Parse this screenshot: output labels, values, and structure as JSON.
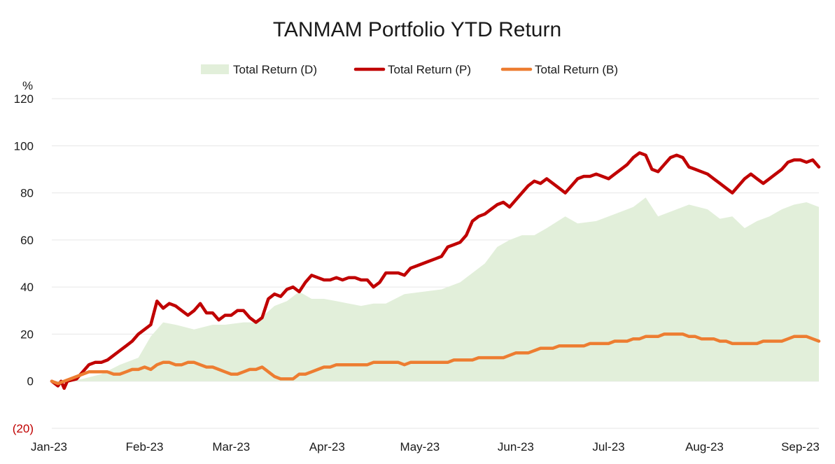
{
  "chart_data": {
    "type": "line",
    "title": "TANMAM Portfolio YTD Return",
    "ylabel": "%",
    "ylim": [
      -20,
      120
    ],
    "y_ticks": [
      120,
      100,
      80,
      60,
      40,
      20,
      0,
      -20
    ],
    "y_tick_labels": [
      "120",
      "100",
      "80",
      "60",
      "40",
      "20",
      "0",
      "(20)"
    ],
    "x_ticks": [
      {
        "x": 0,
        "label": "Jan-23"
      },
      {
        "x": 30,
        "label": "Feb-23"
      },
      {
        "x": 58,
        "label": "Mar-23"
      },
      {
        "x": 89,
        "label": "Apr-23"
      },
      {
        "x": 119,
        "label": "May-23"
      },
      {
        "x": 150,
        "label": "Jun-23"
      },
      {
        "x": 180,
        "label": "Jul-23"
      },
      {
        "x": 211,
        "label": "Aug-23"
      },
      {
        "x": 242,
        "label": "Sep-23"
      }
    ],
    "xlim": [
      0,
      248
    ],
    "legend_position": "top-center",
    "series": [
      {
        "name": "Total Return (D)",
        "style": "area",
        "color": "#e2efda",
        "x": [
          0,
          4,
          10,
          16,
          22,
          28,
          32,
          36,
          40,
          46,
          52,
          56,
          62,
          66,
          72,
          76,
          80,
          84,
          88,
          92,
          96,
          100,
          104,
          108,
          114,
          120,
          126,
          132,
          136,
          140,
          144,
          148,
          152,
          156,
          160,
          166,
          170,
          176,
          180,
          184,
          188,
          192,
          196,
          200,
          206,
          212,
          216,
          220,
          224,
          228,
          232,
          236,
          240,
          244,
          248
        ],
        "values": [
          0,
          0,
          1,
          3,
          7,
          10,
          19,
          25,
          24,
          22,
          24,
          24,
          25,
          25,
          32,
          34,
          38,
          35,
          35,
          34,
          33,
          32,
          33,
          33,
          37,
          38,
          39,
          42,
          46,
          50,
          57,
          60,
          62,
          62,
          65,
          70,
          67,
          68,
          70,
          72,
          74,
          78,
          70,
          72,
          75,
          73,
          69,
          70,
          65,
          68,
          70,
          73,
          75,
          76,
          74
        ]
      },
      {
        "name": "Total Return (P)",
        "style": "line",
        "color": "#c00000",
        "x": [
          0,
          2,
          3,
          4,
          5,
          8,
          10,
          12,
          14,
          16,
          18,
          20,
          22,
          24,
          26,
          28,
          30,
          32,
          34,
          36,
          38,
          40,
          42,
          44,
          46,
          48,
          50,
          52,
          54,
          56,
          58,
          60,
          62,
          64,
          66,
          68,
          70,
          72,
          74,
          76,
          78,
          80,
          82,
          84,
          86,
          88,
          90,
          92,
          94,
          96,
          98,
          100,
          102,
          104,
          106,
          108,
          110,
          112,
          114,
          116,
          118,
          120,
          122,
          124,
          126,
          128,
          130,
          132,
          134,
          136,
          138,
          140,
          142,
          144,
          146,
          148,
          150,
          152,
          154,
          156,
          158,
          160,
          162,
          164,
          166,
          168,
          170,
          172,
          174,
          176,
          178,
          180,
          182,
          184,
          186,
          188,
          190,
          192,
          194,
          196,
          198,
          200,
          202,
          204,
          206,
          208,
          210,
          212,
          214,
          216,
          218,
          220,
          222,
          224,
          226,
          228,
          230,
          232,
          234,
          236,
          238,
          240,
          242,
          244,
          246,
          248
        ],
        "values": [
          0,
          -2,
          0,
          -3,
          0,
          1,
          4,
          7,
          8,
          8,
          9,
          11,
          13,
          15,
          17,
          20,
          22,
          24,
          34,
          31,
          33,
          32,
          30,
          28,
          30,
          33,
          29,
          29,
          26,
          28,
          28,
          30,
          30,
          27,
          25,
          27,
          35,
          37,
          36,
          39,
          40,
          38,
          42,
          45,
          44,
          43,
          43,
          44,
          43,
          44,
          44,
          43,
          43,
          40,
          42,
          46,
          46,
          46,
          45,
          48,
          49,
          50,
          51,
          52,
          53,
          57,
          58,
          59,
          62,
          68,
          70,
          71,
          73,
          75,
          76,
          74,
          77,
          80,
          83,
          85,
          84,
          86,
          84,
          82,
          80,
          83,
          86,
          87,
          87,
          88,
          87,
          86,
          88,
          90,
          92,
          95,
          97,
          96,
          90,
          89,
          92,
          95,
          96,
          95,
          91,
          90,
          89,
          88,
          86,
          84,
          82,
          80,
          83,
          86,
          88,
          86,
          84,
          86,
          88,
          90,
          93,
          94,
          94,
          93,
          94,
          91
        ],
        "smooth": false
      },
      {
        "name": "Total Return (B)",
        "style": "line",
        "color": "#ed7d31",
        "x": [
          0,
          2,
          4,
          6,
          8,
          10,
          12,
          14,
          16,
          18,
          20,
          22,
          24,
          26,
          28,
          30,
          32,
          34,
          36,
          38,
          40,
          42,
          44,
          46,
          48,
          50,
          52,
          54,
          56,
          58,
          60,
          62,
          64,
          66,
          68,
          70,
          72,
          74,
          76,
          78,
          80,
          82,
          84,
          86,
          88,
          90,
          92,
          94,
          96,
          98,
          100,
          102,
          104,
          106,
          108,
          110,
          112,
          114,
          116,
          118,
          120,
          122,
          124,
          126,
          128,
          130,
          132,
          134,
          136,
          138,
          140,
          142,
          144,
          146,
          148,
          150,
          152,
          154,
          156,
          158,
          160,
          162,
          164,
          166,
          168,
          170,
          172,
          174,
          176,
          178,
          180,
          182,
          184,
          186,
          188,
          190,
          192,
          194,
          196,
          198,
          200,
          202,
          204,
          206,
          208,
          210,
          212,
          214,
          216,
          218,
          220,
          222,
          224,
          226,
          228,
          230,
          232,
          234,
          236,
          238,
          240,
          242,
          244,
          246,
          248
        ],
        "values": [
          0,
          -1,
          0,
          1,
          2,
          3,
          4,
          4,
          4,
          4,
          3,
          3,
          4,
          5,
          5,
          6,
          5,
          7,
          8,
          8,
          7,
          7,
          8,
          8,
          7,
          6,
          6,
          5,
          4,
          3,
          3,
          4,
          5,
          5,
          6,
          4,
          2,
          1,
          1,
          1,
          3,
          3,
          4,
          5,
          6,
          6,
          7,
          7,
          7,
          7,
          7,
          7,
          8,
          8,
          8,
          8,
          8,
          7,
          8,
          8,
          8,
          8,
          8,
          8,
          8,
          9,
          9,
          9,
          9,
          10,
          10,
          10,
          10,
          10,
          11,
          12,
          12,
          12,
          13,
          14,
          14,
          14,
          15,
          15,
          15,
          15,
          15,
          16,
          16,
          16,
          16,
          17,
          17,
          17,
          18,
          18,
          19,
          19,
          19,
          20,
          20,
          20,
          20,
          19,
          19,
          18,
          18,
          18,
          17,
          17,
          16,
          16,
          16,
          16,
          16,
          17,
          17,
          17,
          17,
          18,
          19,
          19,
          19,
          18,
          17
        ]
      }
    ]
  }
}
